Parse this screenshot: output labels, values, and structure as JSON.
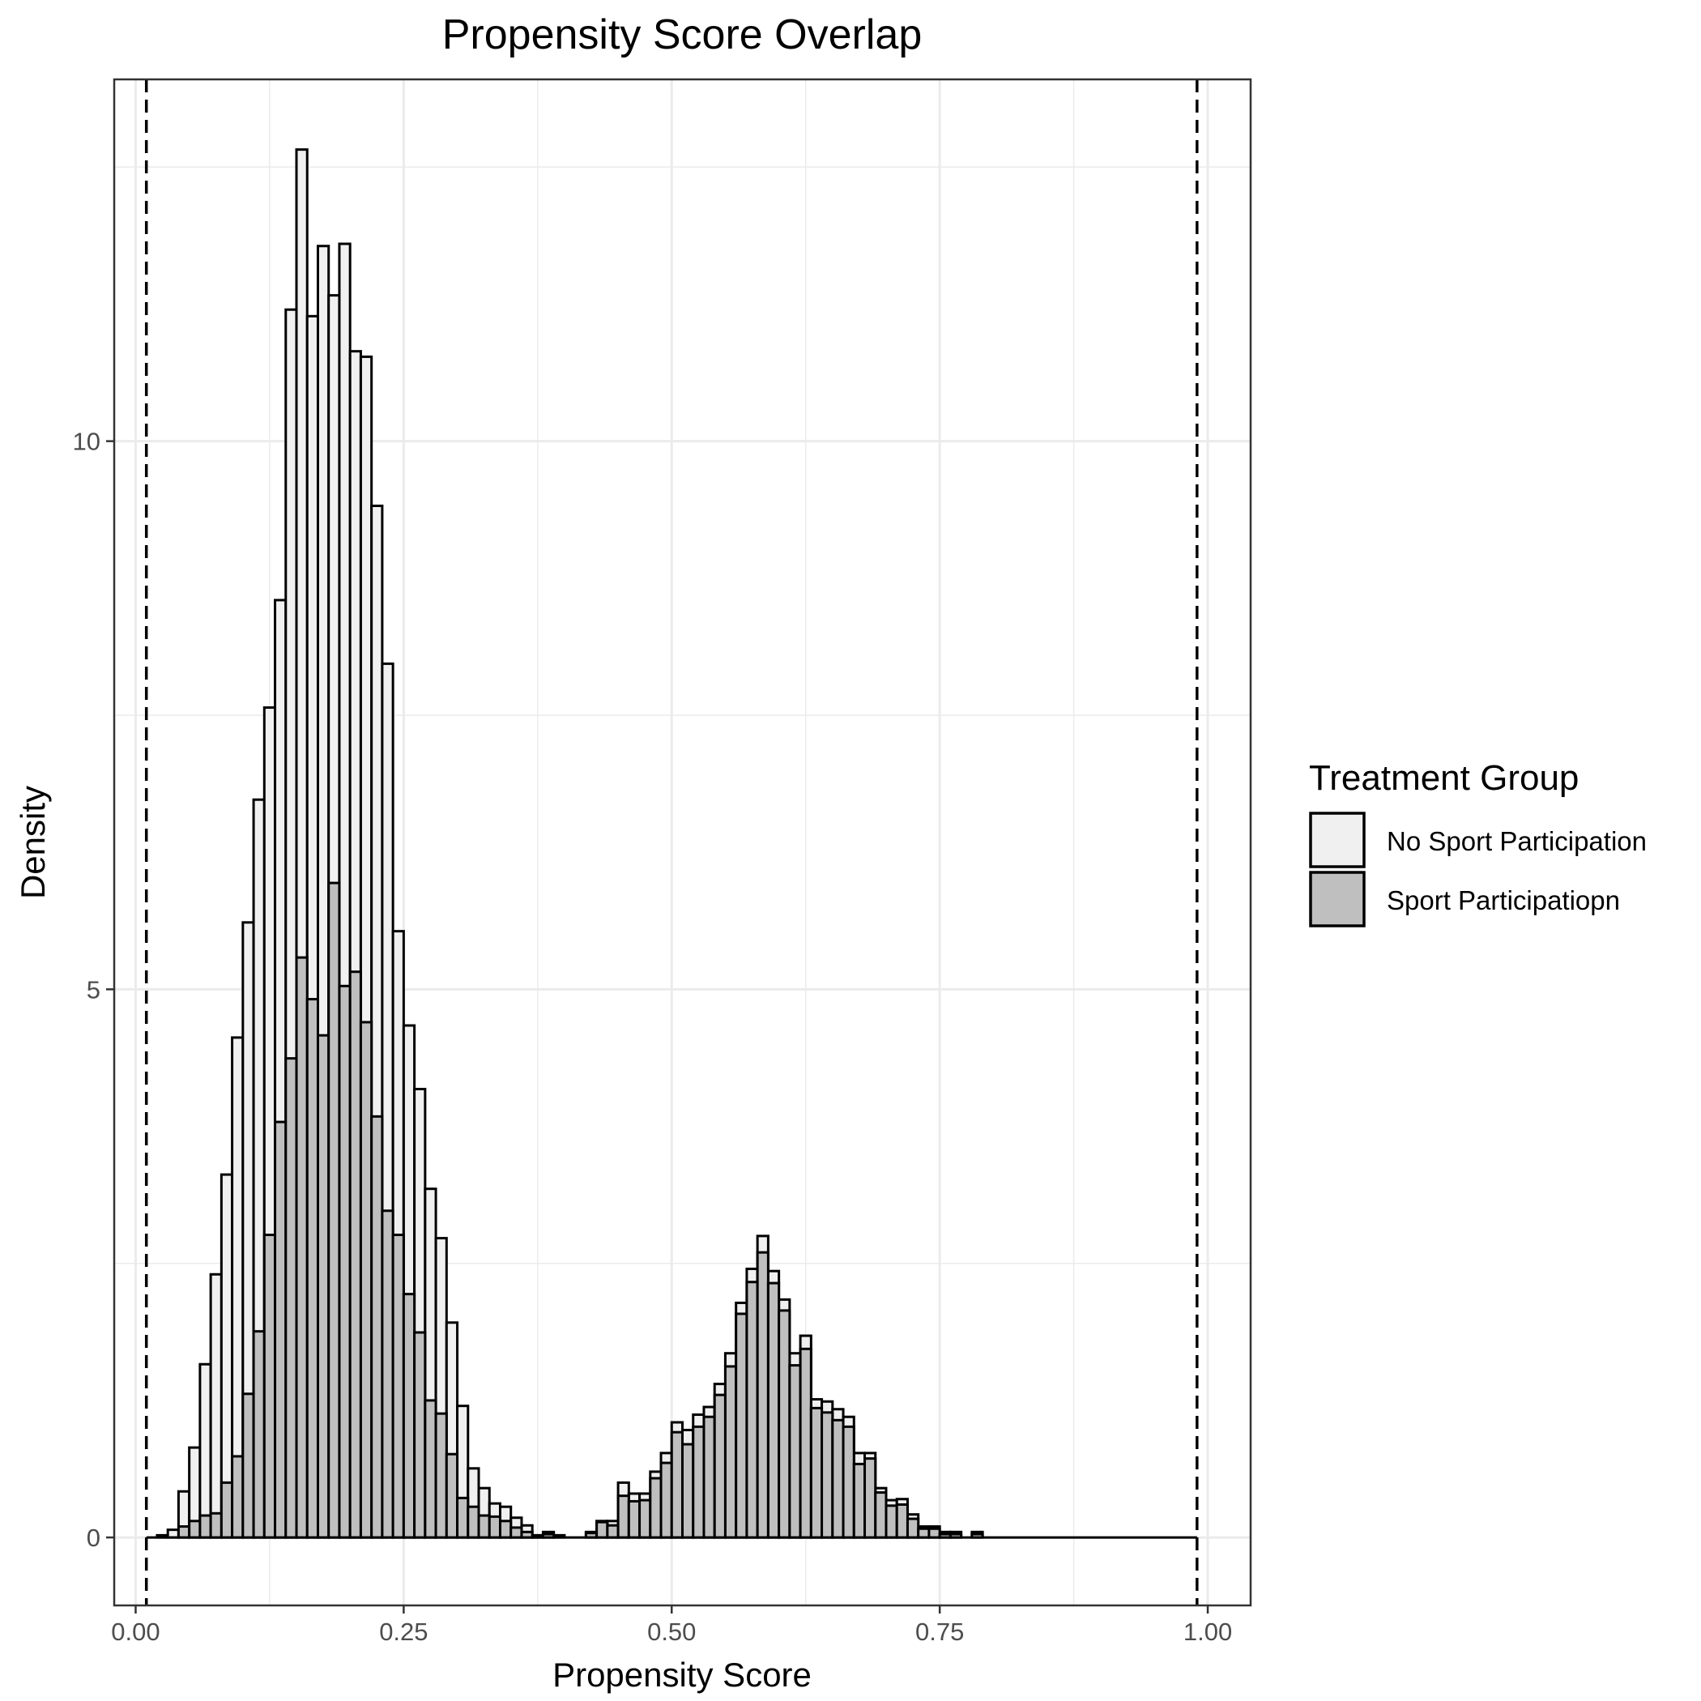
{
  "chart_data": {
    "type": "bar",
    "subtype": "overlaid-histogram",
    "title": "Propensity Score Overlap",
    "xlabel": "Propensity Score",
    "ylabel": "Density",
    "xlim": [
      -0.02,
      1.04
    ],
    "ylim": [
      -0.62,
      13.3
    ],
    "x_ticks": [
      {
        "value": 0.0,
        "label": "0.00"
      },
      {
        "value": 0.25,
        "label": "0.25"
      },
      {
        "value": 0.5,
        "label": "0.50"
      },
      {
        "value": 0.75,
        "label": "0.75"
      },
      {
        "value": 1.0,
        "label": "1.00"
      }
    ],
    "y_ticks": [
      {
        "value": 0,
        "label": "0"
      },
      {
        "value": 5,
        "label": "5"
      },
      {
        "value": 10,
        "label": "10"
      }
    ],
    "grid": true,
    "bin_width": 0.01,
    "reference_lines": [
      0.01,
      0.99
    ],
    "legend": {
      "title": "Treatment Group",
      "position": "right"
    },
    "series": [
      {
        "name": "No Sport Participation",
        "fill": "#f0f0f0",
        "bins": [
          {
            "x0": 0.02,
            "y": 0.02
          },
          {
            "x0": 0.03,
            "y": 0.07
          },
          {
            "x0": 0.04,
            "y": 0.42
          },
          {
            "x0": 0.05,
            "y": 0.82
          },
          {
            "x0": 0.06,
            "y": 1.58
          },
          {
            "x0": 0.07,
            "y": 2.4
          },
          {
            "x0": 0.08,
            "y": 3.31
          },
          {
            "x0": 0.09,
            "y": 4.56
          },
          {
            "x0": 0.1,
            "y": 5.61
          },
          {
            "x0": 0.11,
            "y": 6.73
          },
          {
            "x0": 0.12,
            "y": 7.57
          },
          {
            "x0": 0.13,
            "y": 8.55
          },
          {
            "x0": 0.14,
            "y": 11.2
          },
          {
            "x0": 0.15,
            "y": 12.66
          },
          {
            "x0": 0.16,
            "y": 11.14
          },
          {
            "x0": 0.17,
            "y": 11.78
          },
          {
            "x0": 0.18,
            "y": 11.33
          },
          {
            "x0": 0.19,
            "y": 11.8
          },
          {
            "x0": 0.2,
            "y": 10.82
          },
          {
            "x0": 0.21,
            "y": 10.77
          },
          {
            "x0": 0.22,
            "y": 9.41
          },
          {
            "x0": 0.23,
            "y": 7.97
          },
          {
            "x0": 0.24,
            "y": 5.53
          },
          {
            "x0": 0.25,
            "y": 4.67
          },
          {
            "x0": 0.26,
            "y": 4.09
          },
          {
            "x0": 0.27,
            "y": 3.18
          },
          {
            "x0": 0.28,
            "y": 2.73
          },
          {
            "x0": 0.29,
            "y": 1.96
          },
          {
            "x0": 0.3,
            "y": 1.2
          },
          {
            "x0": 0.31,
            "y": 0.63
          },
          {
            "x0": 0.32,
            "y": 0.45
          },
          {
            "x0": 0.33,
            "y": 0.31
          },
          {
            "x0": 0.34,
            "y": 0.28
          },
          {
            "x0": 0.35,
            "y": 0.18
          },
          {
            "x0": 0.36,
            "y": 0.11
          },
          {
            "x0": 0.37,
            "y": 0.02
          },
          {
            "x0": 0.38,
            "y": 0.05
          },
          {
            "x0": 0.39,
            "y": 0.02
          },
          {
            "x0": 0.42,
            "y": 0.05
          },
          {
            "x0": 0.43,
            "y": 0.15
          },
          {
            "x0": 0.44,
            "y": 0.15
          },
          {
            "x0": 0.45,
            "y": 0.5
          },
          {
            "x0": 0.46,
            "y": 0.4
          },
          {
            "x0": 0.47,
            "y": 0.4
          },
          {
            "x0": 0.48,
            "y": 0.6
          },
          {
            "x0": 0.49,
            "y": 0.77
          },
          {
            "x0": 0.5,
            "y": 1.05
          },
          {
            "x0": 0.51,
            "y": 0.98
          },
          {
            "x0": 0.52,
            "y": 1.12
          },
          {
            "x0": 0.53,
            "y": 1.19
          },
          {
            "x0": 0.54,
            "y": 1.4
          },
          {
            "x0": 0.55,
            "y": 1.68
          },
          {
            "x0": 0.56,
            "y": 2.14
          },
          {
            "x0": 0.57,
            "y": 2.45
          },
          {
            "x0": 0.58,
            "y": 2.75
          },
          {
            "x0": 0.59,
            "y": 2.43
          },
          {
            "x0": 0.6,
            "y": 2.17
          },
          {
            "x0": 0.61,
            "y": 1.68
          },
          {
            "x0": 0.62,
            "y": 1.84
          },
          {
            "x0": 0.63,
            "y": 1.26
          },
          {
            "x0": 0.64,
            "y": 1.24
          },
          {
            "x0": 0.65,
            "y": 1.17
          },
          {
            "x0": 0.66,
            "y": 1.1
          },
          {
            "x0": 0.67,
            "y": 0.77
          },
          {
            "x0": 0.68,
            "y": 0.77
          },
          {
            "x0": 0.69,
            "y": 0.45
          },
          {
            "x0": 0.7,
            "y": 0.34
          },
          {
            "x0": 0.71,
            "y": 0.35
          },
          {
            "x0": 0.72,
            "y": 0.21
          },
          {
            "x0": 0.73,
            "y": 0.1
          },
          {
            "x0": 0.74,
            "y": 0.1
          },
          {
            "x0": 0.75,
            "y": 0.05
          },
          {
            "x0": 0.76,
            "y": 0.05
          },
          {
            "x0": 0.78,
            "y": 0.05
          }
        ]
      },
      {
        "name": "Sport Participatiopn",
        "fill": "#bfbfbf",
        "bins": [
          {
            "x0": 0.04,
            "y": 0.1
          },
          {
            "x0": 0.05,
            "y": 0.15
          },
          {
            "x0": 0.06,
            "y": 0.2
          },
          {
            "x0": 0.07,
            "y": 0.22
          },
          {
            "x0": 0.08,
            "y": 0.5
          },
          {
            "x0": 0.09,
            "y": 0.74
          },
          {
            "x0": 0.1,
            "y": 1.31
          },
          {
            "x0": 0.11,
            "y": 1.88
          },
          {
            "x0": 0.12,
            "y": 2.76
          },
          {
            "x0": 0.13,
            "y": 3.79
          },
          {
            "x0": 0.14,
            "y": 4.37
          },
          {
            "x0": 0.15,
            "y": 5.29
          },
          {
            "x0": 0.16,
            "y": 4.91
          },
          {
            "x0": 0.17,
            "y": 4.58
          },
          {
            "x0": 0.18,
            "y": 5.97
          },
          {
            "x0": 0.19,
            "y": 5.03
          },
          {
            "x0": 0.2,
            "y": 5.16
          },
          {
            "x0": 0.21,
            "y": 4.7
          },
          {
            "x0": 0.22,
            "y": 3.84
          },
          {
            "x0": 0.23,
            "y": 2.98
          },
          {
            "x0": 0.24,
            "y": 2.76
          },
          {
            "x0": 0.25,
            "y": 2.22
          },
          {
            "x0": 0.26,
            "y": 1.87
          },
          {
            "x0": 0.27,
            "y": 1.25
          },
          {
            "x0": 0.28,
            "y": 1.13
          },
          {
            "x0": 0.29,
            "y": 0.76
          },
          {
            "x0": 0.3,
            "y": 0.36
          },
          {
            "x0": 0.31,
            "y": 0.28
          },
          {
            "x0": 0.32,
            "y": 0.2
          },
          {
            "x0": 0.33,
            "y": 0.19
          },
          {
            "x0": 0.34,
            "y": 0.15
          },
          {
            "x0": 0.35,
            "y": 0.09
          },
          {
            "x0": 0.36,
            "y": 0.05
          },
          {
            "x0": 0.37,
            "y": 0.01
          },
          {
            "x0": 0.38,
            "y": 0.03
          },
          {
            "x0": 0.42,
            "y": 0.04
          },
          {
            "x0": 0.43,
            "y": 0.14
          },
          {
            "x0": 0.44,
            "y": 0.11
          },
          {
            "x0": 0.45,
            "y": 0.38
          },
          {
            "x0": 0.46,
            "y": 0.33
          },
          {
            "x0": 0.47,
            "y": 0.34
          },
          {
            "x0": 0.48,
            "y": 0.54
          },
          {
            "x0": 0.49,
            "y": 0.68
          },
          {
            "x0": 0.5,
            "y": 0.96
          },
          {
            "x0": 0.51,
            "y": 0.85
          },
          {
            "x0": 0.52,
            "y": 1.01
          },
          {
            "x0": 0.53,
            "y": 1.1
          },
          {
            "x0": 0.54,
            "y": 1.3
          },
          {
            "x0": 0.55,
            "y": 1.56
          },
          {
            "x0": 0.56,
            "y": 2.04
          },
          {
            "x0": 0.57,
            "y": 2.33
          },
          {
            "x0": 0.58,
            "y": 2.6
          },
          {
            "x0": 0.59,
            "y": 2.32
          },
          {
            "x0": 0.6,
            "y": 2.07
          },
          {
            "x0": 0.61,
            "y": 1.57
          },
          {
            "x0": 0.62,
            "y": 1.72
          },
          {
            "x0": 0.63,
            "y": 1.18
          },
          {
            "x0": 0.64,
            "y": 1.14
          },
          {
            "x0": 0.65,
            "y": 1.07
          },
          {
            "x0": 0.66,
            "y": 1.01
          },
          {
            "x0": 0.67,
            "y": 0.67
          },
          {
            "x0": 0.68,
            "y": 0.72
          },
          {
            "x0": 0.69,
            "y": 0.41
          },
          {
            "x0": 0.7,
            "y": 0.29
          },
          {
            "x0": 0.71,
            "y": 0.3
          },
          {
            "x0": 0.72,
            "y": 0.17
          },
          {
            "x0": 0.73,
            "y": 0.08
          },
          {
            "x0": 0.74,
            "y": 0.08
          },
          {
            "x0": 0.75,
            "y": 0.03
          },
          {
            "x0": 0.76,
            "y": 0.03
          },
          {
            "x0": 0.78,
            "y": 0.03
          }
        ]
      }
    ]
  }
}
